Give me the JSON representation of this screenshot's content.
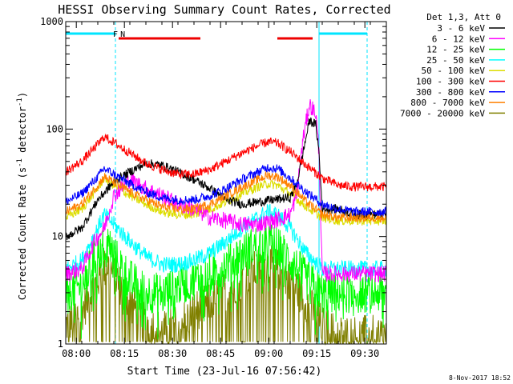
{
  "chart_data": {
    "type": "line",
    "title": "HESSI Observing Summary Count Rates, Corrected",
    "xlabel": "Start Time (23-Jul-16 07:56:42)",
    "ylabel_main": "Corrected Count Rate (s",
    "ylabel_sup1": "-1",
    "ylabel_mid": " detector",
    "ylabel_sup2": "-1",
    "ylabel_end": ")",
    "x_start": "07:56:42",
    "xlim_min": [
      0,
      100
    ],
    "ylim": [
      1,
      1000
    ],
    "yscale": "log",
    "x_ticks": [
      {
        "label": "08:00",
        "min": 3.3
      },
      {
        "label": "08:15",
        "min": 18.3
      },
      {
        "label": "08:30",
        "min": 33.3
      },
      {
        "label": "08:45",
        "min": 48.3
      },
      {
        "label": "09:00",
        "min": 63.3
      },
      {
        "label": "09:15",
        "min": 78.3
      },
      {
        "label": "09:30",
        "min": 93.3
      }
    ],
    "y_ticks": [
      {
        "label": "1",
        "v": 1
      },
      {
        "label": "10",
        "v": 10
      },
      {
        "label": "100",
        "v": 100
      },
      {
        "label": "1000",
        "v": 1000
      }
    ],
    "legend_title": "Det 1,3, Att 0",
    "legend_placement": "right",
    "series": [
      {
        "name": "3 - 6 keV",
        "color": "#000000",
        "points": [
          [
            0,
            10
          ],
          [
            5,
            12
          ],
          [
            10,
            22
          ],
          [
            15,
            32
          ],
          [
            20,
            40
          ],
          [
            25,
            48
          ],
          [
            30,
            46
          ],
          [
            35,
            40
          ],
          [
            40,
            34
          ],
          [
            45,
            28
          ],
          [
            50,
            22
          ],
          [
            55,
            20
          ],
          [
            60,
            21
          ],
          [
            65,
            22
          ],
          [
            70,
            23
          ],
          [
            72,
            30
          ],
          [
            74,
            60
          ],
          [
            76,
            120
          ],
          [
            78,
            110
          ],
          [
            79,
            60
          ],
          [
            80,
            18
          ],
          [
            85,
            18
          ],
          [
            90,
            16
          ],
          [
            95,
            16
          ],
          [
            100,
            16
          ]
        ]
      },
      {
        "name": "6 - 12 keV",
        "color": "#ff00ff",
        "points": [
          [
            0,
            4.5
          ],
          [
            5,
            5
          ],
          [
            9,
            9
          ],
          [
            12,
            12
          ],
          [
            15,
            24
          ],
          [
            20,
            34
          ],
          [
            25,
            28
          ],
          [
            30,
            24
          ],
          [
            35,
            20
          ],
          [
            40,
            18
          ],
          [
            45,
            15
          ],
          [
            50,
            14
          ],
          [
            55,
            13
          ],
          [
            60,
            13
          ],
          [
            65,
            14
          ],
          [
            70,
            16
          ],
          [
            72,
            24
          ],
          [
            74,
            80
          ],
          [
            76,
            170
          ],
          [
            78,
            140
          ],
          [
            79,
            60
          ],
          [
            80,
            4.5
          ],
          [
            85,
            4.5
          ],
          [
            90,
            4.5
          ],
          [
            95,
            4.5
          ],
          [
            100,
            4.5
          ]
        ]
      },
      {
        "name": "12 - 25 keV",
        "color": "#00ff00",
        "points": [
          [
            0,
            3
          ],
          [
            5,
            3.5
          ],
          [
            10,
            7
          ],
          [
            13,
            9
          ],
          [
            16,
            6
          ],
          [
            20,
            4
          ],
          [
            25,
            3
          ],
          [
            30,
            3
          ],
          [
            35,
            3.5
          ],
          [
            40,
            4
          ],
          [
            45,
            4.5
          ],
          [
            50,
            5.5
          ],
          [
            55,
            7
          ],
          [
            60,
            8.5
          ],
          [
            63,
            9
          ],
          [
            66,
            8
          ],
          [
            70,
            6
          ],
          [
            75,
            4
          ],
          [
            80,
            3
          ],
          [
            85,
            3
          ],
          [
            90,
            3
          ],
          [
            95,
            3
          ],
          [
            100,
            3
          ]
        ]
      },
      {
        "name": "25 - 50 keV",
        "color": "#00ffff",
        "points": [
          [
            0,
            5
          ],
          [
            5,
            6
          ],
          [
            10,
            12
          ],
          [
            12,
            16
          ],
          [
            15,
            13
          ],
          [
            20,
            9
          ],
          [
            25,
            6.5
          ],
          [
            30,
            5.5
          ],
          [
            35,
            5.5
          ],
          [
            40,
            6
          ],
          [
            45,
            7
          ],
          [
            50,
            9
          ],
          [
            55,
            12
          ],
          [
            60,
            15
          ],
          [
            63,
            17
          ],
          [
            66,
            16
          ],
          [
            70,
            12
          ],
          [
            75,
            7
          ],
          [
            80,
            5
          ],
          [
            85,
            5
          ],
          [
            90,
            5
          ],
          [
            95,
            5
          ],
          [
            100,
            5
          ]
        ]
      },
      {
        "name": "50 - 100 keV",
        "color": "#dddd00",
        "points": [
          [
            0,
            15
          ],
          [
            5,
            18
          ],
          [
            10,
            28
          ],
          [
            12,
            35
          ],
          [
            15,
            30
          ],
          [
            20,
            24
          ],
          [
            25,
            20
          ],
          [
            30,
            17
          ],
          [
            35,
            16
          ],
          [
            40,
            16
          ],
          [
            45,
            18
          ],
          [
            50,
            21
          ],
          [
            55,
            25
          ],
          [
            60,
            29
          ],
          [
            63,
            31
          ],
          [
            66,
            30
          ],
          [
            70,
            25
          ],
          [
            75,
            19
          ],
          [
            80,
            15
          ],
          [
            85,
            14
          ],
          [
            90,
            14
          ],
          [
            95,
            14
          ],
          [
            100,
            14
          ]
        ]
      },
      {
        "name": "100 - 300 keV",
        "color": "#ff0000",
        "points": [
          [
            0,
            40
          ],
          [
            5,
            50
          ],
          [
            10,
            72
          ],
          [
            12,
            85
          ],
          [
            15,
            75
          ],
          [
            20,
            60
          ],
          [
            25,
            48
          ],
          [
            30,
            42
          ],
          [
            35,
            38
          ],
          [
            40,
            38
          ],
          [
            45,
            42
          ],
          [
            50,
            50
          ],
          [
            55,
            60
          ],
          [
            60,
            70
          ],
          [
            63,
            76
          ],
          [
            66,
            74
          ],
          [
            70,
            62
          ],
          [
            75,
            46
          ],
          [
            80,
            35
          ],
          [
            85,
            30
          ],
          [
            90,
            29
          ],
          [
            95,
            29
          ],
          [
            100,
            29
          ]
        ]
      },
      {
        "name": "300 - 800 keV",
        "color": "#0000ff",
        "points": [
          [
            0,
            21
          ],
          [
            5,
            25
          ],
          [
            10,
            36
          ],
          [
            12,
            43
          ],
          [
            15,
            38
          ],
          [
            20,
            31
          ],
          [
            25,
            26
          ],
          [
            30,
            23
          ],
          [
            35,
            22
          ],
          [
            40,
            22
          ],
          [
            45,
            24
          ],
          [
            50,
            28
          ],
          [
            55,
            34
          ],
          [
            60,
            40
          ],
          [
            63,
            44
          ],
          [
            66,
            43
          ],
          [
            70,
            35
          ],
          [
            75,
            26
          ],
          [
            80,
            20
          ],
          [
            85,
            18
          ],
          [
            90,
            17
          ],
          [
            95,
            17
          ],
          [
            100,
            17
          ]
        ]
      },
      {
        "name": "800 - 7000 keV",
        "color": "#ff8000",
        "points": [
          [
            0,
            17
          ],
          [
            5,
            20
          ],
          [
            10,
            30
          ],
          [
            12,
            36
          ],
          [
            15,
            32
          ],
          [
            20,
            26
          ],
          [
            25,
            22
          ],
          [
            30,
            19
          ],
          [
            35,
            18
          ],
          [
            40,
            18
          ],
          [
            45,
            20
          ],
          [
            50,
            24
          ],
          [
            55,
            29
          ],
          [
            60,
            34
          ],
          [
            63,
            37
          ],
          [
            66,
            36
          ],
          [
            70,
            30
          ],
          [
            75,
            21
          ],
          [
            80,
            16
          ],
          [
            85,
            15
          ],
          [
            90,
            15
          ],
          [
            95,
            15
          ],
          [
            100,
            15
          ]
        ]
      },
      {
        "name": "7000 - 20000 keV",
        "color": "#808000",
        "points": [
          [
            0,
            1.5
          ],
          [
            5,
            2
          ],
          [
            10,
            4
          ],
          [
            13,
            5.5
          ],
          [
            16,
            4
          ],
          [
            20,
            2.5
          ],
          [
            25,
            1.6
          ],
          [
            30,
            1.3
          ],
          [
            35,
            1.5
          ],
          [
            40,
            2
          ],
          [
            45,
            2.5
          ],
          [
            50,
            3.2
          ],
          [
            55,
            4
          ],
          [
            60,
            5
          ],
          [
            63,
            5.5
          ],
          [
            66,
            5
          ],
          [
            70,
            4
          ],
          [
            75,
            2.5
          ],
          [
            80,
            1.5
          ],
          [
            85,
            1.2
          ],
          [
            90,
            1.2
          ],
          [
            95,
            1.2
          ],
          [
            100,
            1.2
          ]
        ]
      }
    ],
    "annotations": [
      {
        "text": "F",
        "color": "#ff0000",
        "min": 15.5
      },
      {
        "text": "N",
        "color": "#00c0ff",
        "min": 17.8
      }
    ],
    "flare_bars": [
      [
        16.5,
        42
      ],
      [
        66,
        77
      ]
    ],
    "night_bars": [
      [
        0,
        15.5
      ],
      [
        79,
        94
      ]
    ],
    "saa_lines": [
      15.5,
      79,
      94
    ]
  },
  "footer_timestamp": "8-Nov-2017 18:52"
}
